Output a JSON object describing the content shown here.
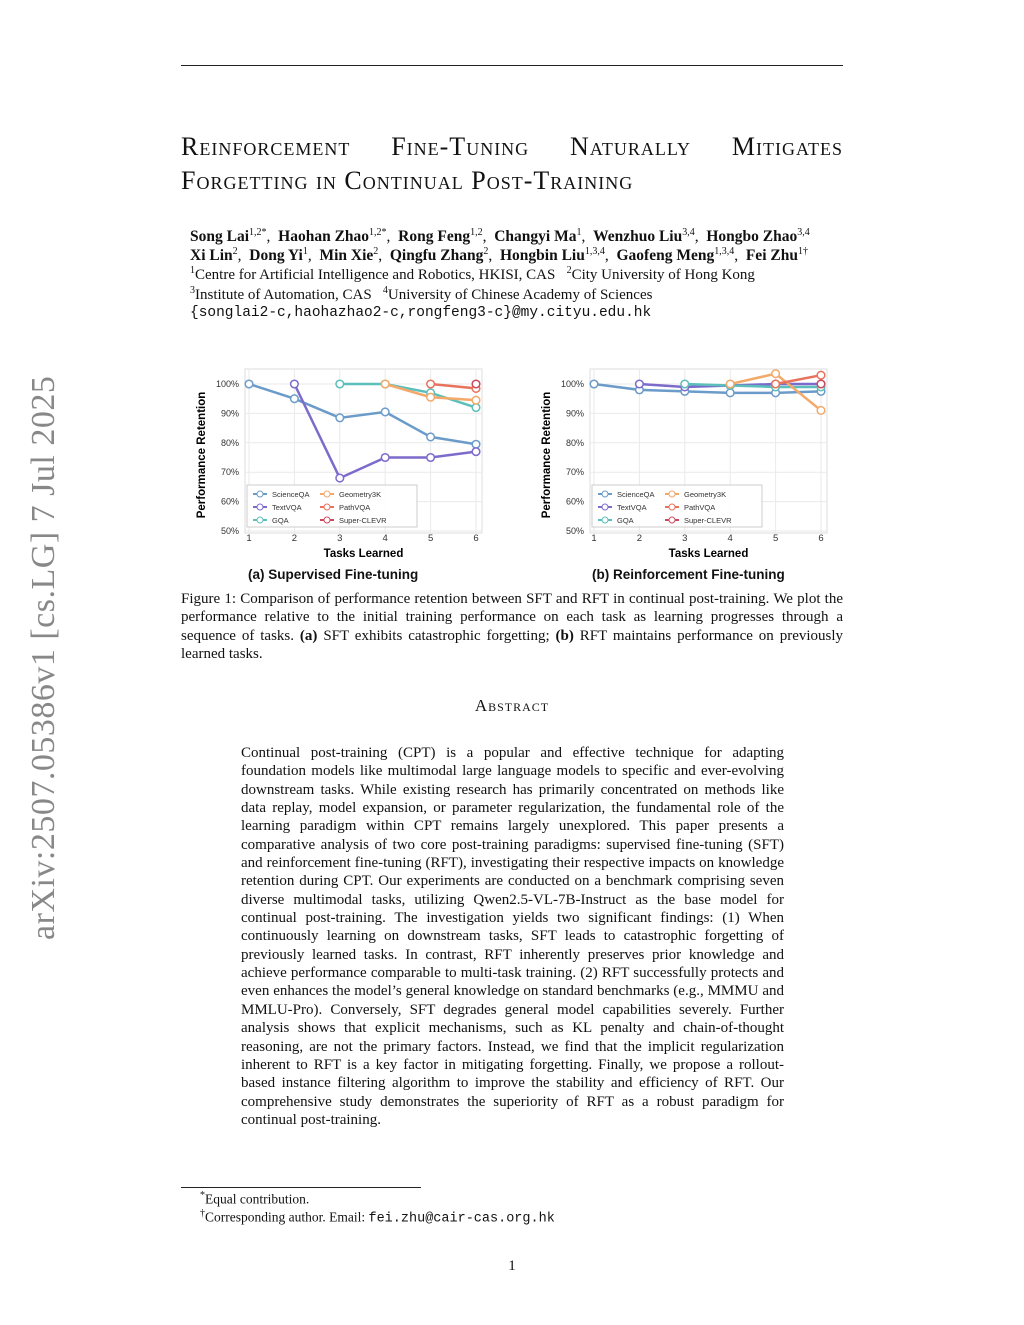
{
  "arxiv_stamp": "arXiv:2507.05386v1  [cs.LG]  7 Jul 2025",
  "title": "Reinforcement Fine-Tuning Naturally Mitigates Forgetting in Continual Post-Training",
  "authors": {
    "line1": [
      [
        "Song Lai",
        "1,2",
        "*"
      ],
      [
        "Haohan Zhao",
        "1,2",
        "*"
      ],
      [
        "Rong Feng",
        "1,2",
        ""
      ],
      [
        "Changyi Ma",
        "1",
        ""
      ],
      [
        "Wenzhuo Liu",
        "3,4",
        ""
      ],
      [
        "Hongbo Zhao",
        "3,4",
        ""
      ]
    ],
    "line2": [
      [
        "Xi Lin",
        "2",
        ""
      ],
      [
        "Dong Yi",
        "1",
        ""
      ],
      [
        "Min Xie",
        "2",
        ""
      ],
      [
        "Qingfu Zhang",
        "2",
        ""
      ],
      [
        "Hongbin Liu",
        "1,3,4",
        ""
      ],
      [
        "Gaofeng Meng",
        "1,3,4",
        ""
      ],
      [
        "Fei Zhu",
        "1",
        "†"
      ]
    ],
    "aff1": "Centre for Artificial Intelligence and Robotics, HKISI, CAS",
    "aff2": "City University of Hong Kong",
    "aff3": "Institute of Automation, CAS",
    "aff4": "University of Chinese Academy of Sciences",
    "emails": "{songlai2-c,haohazhao2-c,rongfeng3-c}@my.cityu.edu.hk"
  },
  "chart_data": [
    {
      "type": "line",
      "subtitle": "(a) Supervised Fine-tuning",
      "xlabel": "Tasks Learned",
      "ylabel": "Performance Retention",
      "x": [
        1,
        2,
        3,
        4,
        5,
        6
      ],
      "yticks": [
        "50%",
        "60%",
        "70%",
        "80%",
        "90%",
        "100%"
      ],
      "ylim": [
        50,
        104
      ],
      "grid": true,
      "legend": "bottom-left",
      "series": [
        {
          "name": "ScienceQA",
          "color": "#6b9bc9",
          "values": [
            100,
            95,
            88.5,
            90.5,
            82,
            79.5
          ]
        },
        {
          "name": "TextVQA",
          "color": "#7d6bcc",
          "values": [
            null,
            100,
            68,
            75,
            75,
            77
          ]
        },
        {
          "name": "GQA",
          "color": "#5cbfbb",
          "values": [
            null,
            null,
            100,
            100,
            97,
            92
          ]
        },
        {
          "name": "Geometry3K",
          "color": "#f2a96a",
          "values": [
            null,
            null,
            null,
            100,
            95.5,
            94.5
          ]
        },
        {
          "name": "PathVQA",
          "color": "#e8725c",
          "values": [
            null,
            null,
            null,
            null,
            100,
            98.5
          ]
        },
        {
          "name": "Super-CLEVR",
          "color": "#cc4a5e",
          "values": [
            null,
            null,
            null,
            null,
            null,
            100
          ]
        }
      ]
    },
    {
      "type": "line",
      "subtitle": "(b) Reinforcement Fine-tuning",
      "xlabel": "Tasks Learned",
      "ylabel": "Performance Retention",
      "x": [
        1,
        2,
        3,
        4,
        5,
        6
      ],
      "yticks": [
        "50%",
        "60%",
        "70%",
        "80%",
        "90%",
        "100%"
      ],
      "ylim": [
        50,
        104
      ],
      "grid": true,
      "legend": "bottom-left",
      "series": [
        {
          "name": "ScienceQA",
          "color": "#6b9bc9",
          "values": [
            100,
            98,
            97.5,
            97,
            97,
            97.5
          ]
        },
        {
          "name": "TextVQA",
          "color": "#7d6bcc",
          "values": [
            null,
            100,
            99,
            99.5,
            100,
            100
          ]
        },
        {
          "name": "GQA",
          "color": "#5cbfbb",
          "values": [
            null,
            null,
            100,
            99.5,
            99,
            99
          ]
        },
        {
          "name": "Geometry3K",
          "color": "#f2a96a",
          "values": [
            null,
            null,
            null,
            100,
            103.5,
            91
          ]
        },
        {
          "name": "PathVQA",
          "color": "#e8725c",
          "values": [
            null,
            null,
            null,
            null,
            100,
            103
          ]
        },
        {
          "name": "Super-CLEVR",
          "color": "#cc4a5e",
          "values": [
            null,
            null,
            null,
            null,
            null,
            100
          ]
        }
      ]
    }
  ],
  "caption": {
    "label": "Figure 1:",
    "text": "Comparison of performance retention between SFT and RFT in continual post-training. We plot the performance relative to the initial training performance on each task as learning progresses through a sequence of tasks.",
    "a": "(a)",
    "a_text": "SFT exhibits catastrophic forgetting;",
    "b": "(b)",
    "b_text": "RFT maintains performance on previously learned tasks."
  },
  "abstract_heading": "Abstract",
  "abstract": "Continual post-training (CPT) is a popular and effective technique for adapting foundation models like multimodal large language models to specific and ever-evolving downstream tasks. While existing research has primarily concentrated on methods like data replay, model expansion, or parameter regularization, the fundamental role of the learning paradigm within CPT remains largely unexplored. This paper presents a comparative analysis of two core post-training paradigms: supervised fine-tuning (SFT) and reinforcement fine-tuning (RFT), investigating their respective impacts on knowledge retention during CPT. Our experiments are conducted on a benchmark comprising seven diverse multimodal tasks, utilizing Qwen2.5-VL-7B-Instruct as the base model for continual post-training. The investigation yields two significant findings: (1) When continuously learning on downstream tasks, SFT leads to catastrophic forgetting of previously learned tasks. In contrast, RFT inherently preserves prior knowledge and achieve performance comparable to multi-task training. (2) RFT successfully protects and even enhances the model’s general knowledge on standard benchmarks (e.g., MMMU and MMLU-Pro). Conversely, SFT degrades general model capabilities severely. Further analysis shows that explicit mechanisms, such as KL penalty and chain-of-thought reasoning, are not the primary factors. Instead, we find that the implicit regularization inherent to RFT is a key factor in mitigating forgetting. Finally, we propose a rollout-based instance filtering algorithm to improve the stability and efficiency of RFT. Our comprehensive study demonstrates the superiority of RFT as a robust paradigm for continual post-training.",
  "footnotes": {
    "equal": "Equal contribution.",
    "corr": "Corresponding author. Email: ",
    "email": "fei.zhu@cair-cas.org.hk"
  },
  "page_number": "1"
}
